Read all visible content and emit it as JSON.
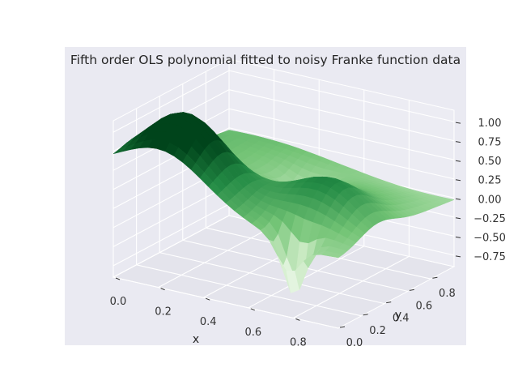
{
  "chart_data": {
    "type": "surface3d",
    "title": "Fifth order OLS polynomial fitted to noisy Franke function data",
    "xlabel": "x",
    "ylabel": "y",
    "zlabel": "",
    "xlim": [
      0,
      1
    ],
    "ylim": [
      0,
      1
    ],
    "zlim": [
      -0.9,
      1.15
    ],
    "x_ticks": [
      0.0,
      0.2,
      0.4,
      0.6,
      0.8
    ],
    "x_tick_labels": [
      "0.0",
      "0.2",
      "0.4",
      "0.6",
      "0.8"
    ],
    "y_ticks": [
      0.0,
      0.2,
      0.4,
      0.6,
      0.8
    ],
    "y_tick_labels": [
      "0.0",
      "0.2",
      "0.4",
      "0.6",
      "0.8"
    ],
    "z_ticks": [
      1.0,
      0.75,
      0.5,
      0.25,
      0.0,
      -0.25,
      -0.5,
      -0.75
    ],
    "z_tick_labels": [
      "1.00",
      "0.75",
      "0.50",
      "0.25",
      "0.00",
      "−0.25",
      "−0.50",
      "−0.75"
    ],
    "colormap": "Greens",
    "grid": true,
    "pane_color": "#e9e9f1",
    "grid_color": "#ffffff",
    "surface_model": "fifth-order polynomial fit of the Franke function (approximate)"
  }
}
